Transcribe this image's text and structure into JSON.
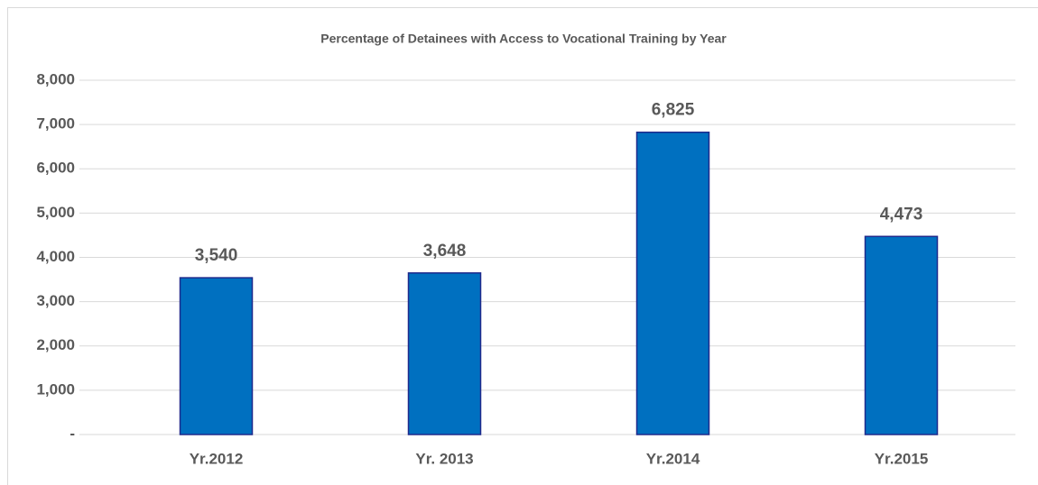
{
  "chart_data": {
    "type": "bar",
    "title": "Percentage of Detainees with Access to Vocational Training by Year",
    "categories": [
      "Yr.2012",
      "Yr. 2013",
      "Yr.2014",
      "Yr.2015"
    ],
    "values": [
      3540,
      3648,
      6825,
      4473
    ],
    "value_labels": [
      "3,540",
      "3,648",
      "6,825",
      "4,473"
    ],
    "color": "#0070c0",
    "ylim": [
      0,
      8000
    ],
    "yticks": [
      {
        "value": 0,
        "label": "-"
      },
      {
        "value": 1000,
        "label": "1,000"
      },
      {
        "value": 2000,
        "label": "2,000"
      },
      {
        "value": 3000,
        "label": "3,000"
      },
      {
        "value": 4000,
        "label": "4,000"
      },
      {
        "value": 5000,
        "label": "5,000"
      },
      {
        "value": 6000,
        "label": "6,000"
      },
      {
        "value": 7000,
        "label": "7,000"
      },
      {
        "value": 8000,
        "label": "8,000"
      }
    ],
    "grid": true
  }
}
